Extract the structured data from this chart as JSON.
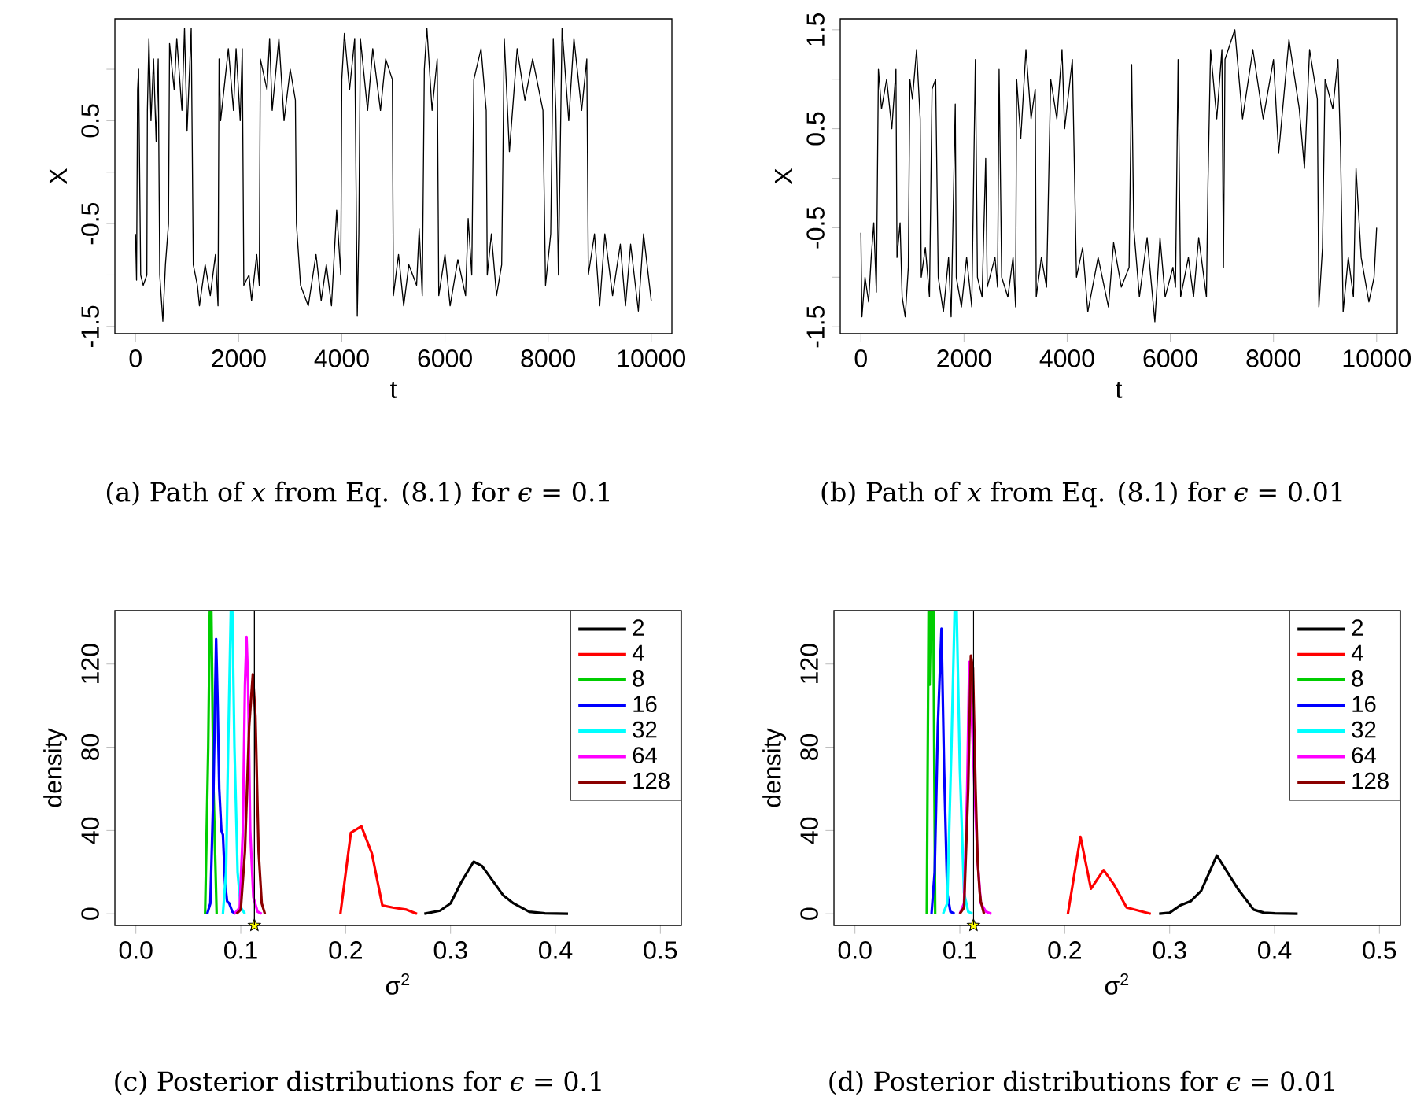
{
  "chart_data": [
    {
      "type": "line",
      "color": "#000000",
      "xlim": [
        -400,
        10400
      ],
      "ylim": [
        -1.57,
        1.49
      ],
      "xticks": [
        0,
        2000,
        4000,
        6000,
        8000,
        10000
      ],
      "yticks": [
        -1.5,
        {
          "value": -1,
          "label": null
        },
        -0.5,
        {
          "value": 0,
          "label": null
        },
        0.5,
        {
          "value": 1,
          "label": null
        }
      ],
      "xlabel": "t",
      "ylabel": "X",
      "annotations": [
        "(a) Path of *x* from Eq. (8.1) for *ϵ* = 0.1"
      ],
      "x": [
        0,
        20,
        40,
        60,
        100,
        150,
        220,
        230,
        260,
        300,
        350,
        400,
        440,
        470,
        530,
        580,
        640,
        660,
        750,
        800,
        900,
        950,
        1000,
        1080,
        1120,
        1200,
        1240,
        1350,
        1450,
        1550,
        1600,
        1620,
        1650,
        1800,
        1900,
        1950,
        2030,
        2070,
        2100,
        2200,
        2250,
        2350,
        2400,
        2420,
        2550,
        2600,
        2650,
        2780,
        2880,
        3000,
        3100,
        3120,
        3200,
        3350,
        3500,
        3600,
        3700,
        3800,
        3900,
        3980,
        4000,
        4050,
        4150,
        4250,
        4300,
        4330,
        4360,
        4500,
        4600,
        4750,
        4850,
        4980,
        5000,
        5100,
        5200,
        5300,
        5450,
        5500,
        5560,
        5600,
        5650,
        5750,
        5850,
        5880,
        6000,
        6100,
        6250,
        6400,
        6450,
        6520,
        6560,
        6700,
        6800,
        6820,
        6900,
        7000,
        7100,
        7150,
        7250,
        7400,
        7550,
        7700,
        7900,
        7950,
        8050,
        8100,
        8150,
        8200,
        8270,
        8400,
        8500,
        8650,
        8750,
        8780,
        8900,
        9000,
        9100,
        9250,
        9400,
        9500,
        9600,
        9750,
        9850,
        10000
      ],
      "values": [
        -0.6,
        -1.05,
        0.8,
        1.0,
        -1.0,
        -1.1,
        -1.0,
        0.6,
        1.3,
        0.5,
        1.1,
        0.3,
        1.1,
        -1.0,
        -1.45,
        -0.9,
        -0.5,
        1.25,
        0.8,
        1.3,
        0.6,
        1.4,
        0.4,
        1.4,
        -0.9,
        -1.1,
        -1.3,
        -0.9,
        -1.2,
        -0.8,
        -1.3,
        1.1,
        0.5,
        1.2,
        0.6,
        1.2,
        0.5,
        1.2,
        -1.1,
        -1.0,
        -1.25,
        -0.8,
        -1.1,
        1.1,
        0.8,
        1.3,
        0.6,
        1.3,
        0.5,
        1.0,
        0.7,
        -0.5,
        -1.1,
        -1.3,
        -0.8,
        -1.25,
        -0.9,
        -1.3,
        -0.37,
        -1.0,
        0.9,
        1.35,
        0.8,
        1.3,
        -1.4,
        -0.6,
        1.3,
        0.6,
        1.2,
        0.6,
        1.1,
        0.9,
        -1.2,
        -0.8,
        -1.3,
        -0.9,
        -1.1,
        -0.55,
        -1.2,
        1.0,
        1.4,
        0.6,
        1.1,
        -1.2,
        -0.8,
        -1.3,
        -0.85,
        -1.2,
        -0.45,
        -1.0,
        0.9,
        1.2,
        0.6,
        -1.0,
        -0.6,
        -1.2,
        -0.9,
        1.3,
        0.2,
        1.2,
        0.7,
        1.1,
        0.6,
        -1.1,
        -0.6,
        1.3,
        0.6,
        -1.0,
        1.4,
        0.5,
        1.3,
        0.6,
        1.1,
        -1.0,
        -0.6,
        -1.3,
        -0.6,
        -1.2,
        -0.7,
        -1.3,
        -0.7,
        -1.35,
        -0.6,
        -1.25
      ]
    },
    {
      "type": "line",
      "color": "#000000",
      "xlim": [
        -400,
        10400
      ],
      "ylim": [
        -1.57,
        1.61
      ],
      "xticks": [
        0,
        2000,
        4000,
        6000,
        8000,
        10000
      ],
      "yticks": [
        -1.5,
        {
          "value": -1,
          "label": null
        },
        -0.5,
        {
          "value": 0,
          "label": null
        },
        0.5,
        {
          "value": 1,
          "label": null
        },
        1.5
      ],
      "xlabel": "t",
      "ylabel": "X",
      "annotations": [
        "(b) Path of *x* from Eq. (8.1) for *ϵ* = 0.01"
      ],
      "x": [
        0,
        20,
        80,
        150,
        200,
        250,
        300,
        340,
        400,
        500,
        600,
        680,
        700,
        760,
        800,
        860,
        920,
        950,
        1000,
        1080,
        1150,
        1170,
        1250,
        1330,
        1380,
        1450,
        1500,
        1600,
        1700,
        1750,
        1830,
        1850,
        1950,
        2050,
        2150,
        2220,
        2260,
        2350,
        2420,
        2450,
        2600,
        2650,
        2680,
        2730,
        2850,
        2950,
        3000,
        3020,
        3100,
        3200,
        3300,
        3380,
        3400,
        3500,
        3600,
        3680,
        3800,
        3900,
        3950,
        4100,
        4180,
        4300,
        4400,
        4600,
        4800,
        4900,
        5050,
        5200,
        5250,
        5290,
        5400,
        5550,
        5700,
        5800,
        5900,
        6050,
        6100,
        6150,
        6200,
        6350,
        6450,
        6550,
        6700,
        6730,
        6780,
        6900,
        7000,
        7030,
        7060,
        7250,
        7400,
        7600,
        7800,
        8000,
        8100,
        8300,
        8500,
        8600,
        8700,
        8850,
        8880,
        8950,
        9000,
        9150,
        9250,
        9300,
        9350,
        9450,
        9550,
        9600,
        9700,
        9850,
        9950,
        10000
      ],
      "values": [
        -0.55,
        -1.4,
        -1.0,
        -1.25,
        -0.8,
        -0.45,
        -1.15,
        1.1,
        0.7,
        1.0,
        0.5,
        1.1,
        -0.8,
        -0.45,
        -1.2,
        -1.4,
        -0.9,
        1.0,
        0.8,
        1.3,
        0.6,
        -1.0,
        -0.7,
        -1.2,
        0.9,
        1.0,
        -1.0,
        -1.35,
        -0.8,
        -1.4,
        0.75,
        -1.0,
        -1.3,
        -0.8,
        -1.3,
        1.2,
        -1.0,
        -1.2,
        0.2,
        -1.1,
        -0.8,
        -1.1,
        1.1,
        -1.0,
        -1.2,
        -0.8,
        -1.3,
        1.0,
        0.4,
        1.3,
        0.6,
        0.9,
        -1.2,
        -0.8,
        -1.1,
        1.0,
        0.6,
        1.3,
        0.5,
        1.2,
        -1.0,
        -0.7,
        -1.35,
        -0.8,
        -1.3,
        -0.65,
        -1.1,
        -0.9,
        1.15,
        -0.5,
        -1.2,
        -0.6,
        -1.45,
        -0.6,
        -1.2,
        -0.9,
        -1.1,
        1.2,
        -1.2,
        -0.8,
        -1.2,
        -0.6,
        -1.2,
        -0.05,
        1.3,
        0.6,
        1.3,
        -0.9,
        1.2,
        1.5,
        0.6,
        1.3,
        0.6,
        1.2,
        0.25,
        1.4,
        0.7,
        0.1,
        1.3,
        0.8,
        -1.3,
        -0.7,
        1.0,
        0.7,
        1.2,
        0.3,
        -1.35,
        -0.8,
        -1.2,
        0.1,
        -0.8,
        -1.25,
        -1.0,
        -0.5
      ]
    },
    {
      "type": "line",
      "xlim": [
        -0.02,
        0.52
      ],
      "ylim": [
        -5.6,
        145.6
      ],
      "xticks": [
        {
          "value": 0,
          "label": "0.0"
        },
        0.1,
        0.2,
        0.3,
        0.4,
        0.5
      ],
      "yticks": [
        0,
        40,
        80,
        120
      ],
      "xlabel": "σ$^{2}$",
      "ylabel": "density",
      "legend": "top right",
      "annotations": [
        "(c) Posterior distributions for *ϵ* = 0.1"
      ],
      "ref_lines": [
        {
          "axis": "x",
          "value": 0.113,
          "color": "#000000"
        }
      ],
      "series": [
        {
          "name": "2",
          "color": "#000000",
          "x": [
            0.275,
            0.29,
            0.3,
            0.31,
            0.322,
            0.33,
            0.34,
            0.35,
            0.36,
            0.375,
            0.39,
            0.412
          ],
          "values": [
            0,
            1.5,
            5,
            15,
            25,
            23,
            16,
            9,
            5,
            1,
            0.2,
            0
          ]
        },
        {
          "name": "4",
          "color": "#ff0000",
          "x": [
            0.195,
            0.205,
            0.215,
            0.225,
            0.235,
            0.245,
            0.258,
            0.268
          ],
          "values": [
            0,
            39,
            42,
            29,
            4,
            3,
            2,
            0
          ]
        },
        {
          "name": "8",
          "color": "#00cd00",
          "x": [
            0.066,
            0.069,
            0.0705,
            0.072,
            0.074,
            0.077
          ],
          "values": [
            0,
            80,
            145,
            145,
            60,
            0
          ]
        },
        {
          "name": "16",
          "color": "#0000ff",
          "x": [
            0.068,
            0.071,
            0.074,
            0.0765,
            0.078,
            0.0795,
            0.0815,
            0.083,
            0.085,
            0.087,
            0.089,
            0.092,
            0.095
          ],
          "values": [
            0,
            5,
            60,
            132,
            100,
            60,
            40,
            38,
            15,
            6,
            5,
            1,
            0
          ]
        },
        {
          "name": "32",
          "color": "#00ffff",
          "x": [
            0.083,
            0.086,
            0.088,
            0.0905,
            0.092,
            0.094,
            0.097,
            0.1,
            0.104
          ],
          "values": [
            0,
            20,
            80,
            145,
            145,
            80,
            20,
            3,
            0
          ]
        },
        {
          "name": "64",
          "color": "#ff00ff",
          "x": [
            0.094,
            0.099,
            0.102,
            0.104,
            0.1055,
            0.107,
            0.109,
            0.112,
            0.116,
            0.12
          ],
          "values": [
            0,
            3,
            40,
            110,
            133,
            110,
            40,
            8,
            1,
            0
          ]
        },
        {
          "name": "128",
          "color": "#8b0000",
          "x": [
            0.096,
            0.1,
            0.104,
            0.108,
            0.1115,
            0.114,
            0.117,
            0.12,
            0.123
          ],
          "values": [
            0,
            2,
            30,
            90,
            115,
            95,
            30,
            5,
            0
          ]
        },
        {
          "type": "scatter",
          "marker": "star",
          "color": "#ffff00",
          "x": [
            0.113
          ],
          "values": [
            -5.6
          ]
        }
      ]
    },
    {
      "type": "line",
      "xlim": [
        -0.02,
        0.52
      ],
      "ylim": [
        -5.6,
        145.6
      ],
      "xticks": [
        {
          "value": 0,
          "label": "0.0"
        },
        0.1,
        0.2,
        0.3,
        0.4,
        0.5
      ],
      "yticks": [
        0,
        40,
        80,
        120
      ],
      "xlabel": "σ$^{2}$",
      "ylabel": "density",
      "legend": "top right",
      "annotations": [
        "(d) Posterior distributions for *ϵ* = 0.01"
      ],
      "ref_lines": [
        {
          "axis": "x",
          "value": 0.113,
          "color": "#000000"
        }
      ],
      "series": [
        {
          "name": "2",
          "color": "#000000",
          "x": [
            0.29,
            0.3,
            0.31,
            0.32,
            0.33,
            0.345,
            0.355,
            0.365,
            0.38,
            0.39,
            0.4,
            0.422
          ],
          "values": [
            0,
            0.5,
            4,
            6,
            11,
            28,
            20,
            12,
            2,
            0.5,
            0.2,
            0
          ]
        },
        {
          "name": "4",
          "color": "#ff0000",
          "x": [
            0.203,
            0.215,
            0.225,
            0.237,
            0.247,
            0.259,
            0.282
          ],
          "values": [
            0,
            37,
            12,
            21,
            14,
            3,
            0
          ]
        },
        {
          "name": "8",
          "color": "#00cd00",
          "x": [
            0.0685,
            0.0702,
            0.0712,
            0.0725,
            0.0748,
            0.0765
          ],
          "values": [
            0,
            145,
            110,
            145,
            145,
            0
          ]
        },
        {
          "name": "16",
          "color": "#0000ff",
          "x": [
            0.073,
            0.076,
            0.079,
            0.0825,
            0.085,
            0.088,
            0.091,
            0.095
          ],
          "values": [
            0,
            20,
            90,
            137,
            70,
            10,
            1,
            0
          ]
        },
        {
          "name": "32",
          "color": "#00ffff",
          "x": [
            0.084,
            0.088,
            0.092,
            0.095,
            0.097,
            0.1,
            0.104,
            0.108,
            0.112
          ],
          "values": [
            0,
            5,
            80,
            145,
            145,
            70,
            10,
            1,
            0
          ]
        },
        {
          "name": "64",
          "color": "#ff00ff",
          "x": [
            0.1,
            0.104,
            0.107,
            0.109,
            0.111,
            0.114,
            0.117,
            0.12,
            0.125,
            0.13
          ],
          "values": [
            0,
            5,
            60,
            121,
            100,
            60,
            25,
            5,
            1,
            0
          ]
        },
        {
          "name": "128",
          "color": "#8b0000",
          "x": [
            0.1,
            0.104,
            0.108,
            0.1105,
            0.1125,
            0.115,
            0.117,
            0.119,
            0.12,
            0.123
          ],
          "values": [
            0,
            3,
            60,
            124,
            118,
            60,
            25,
            10,
            6,
            0
          ]
        },
        {
          "type": "scatter",
          "marker": "star",
          "color": "#ffff00",
          "x": [
            0.113
          ],
          "values": [
            -5.6
          ]
        }
      ]
    }
  ]
}
